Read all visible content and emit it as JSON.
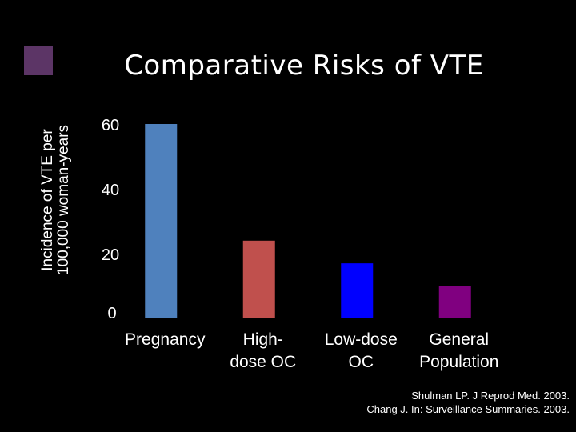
{
  "slide": {
    "title": "Comparative Risks of VTE",
    "source_lines": [
      "Shulman LP. J Reprod Med. 2003.",
      "Chang J. In: Surveillance Summaries. 2003."
    ],
    "colors": {
      "background": "#000000",
      "decoration": "#5c3566"
    }
  },
  "chart_data": {
    "type": "bar",
    "title": "Comparative Risks of VTE",
    "xlabel": "",
    "ylabel": "Incidence of VTE per 100,000 woman-years",
    "ylabel_lines": [
      "Incidence of VTE per",
      "100,000 woman-years"
    ],
    "yticks": [
      0,
      20,
      40,
      60
    ],
    "ylim": [
      0,
      60
    ],
    "grid": false,
    "categories": [
      "Pregnancy",
      "High-dose OC",
      "Low-dose OC",
      "General Population"
    ],
    "category_lines": [
      [
        "Pregnancy"
      ],
      [
        "High-",
        "dose OC"
      ],
      [
        "Low-dose",
        "OC"
      ],
      [
        "General",
        "Population"
      ]
    ],
    "values": [
      60,
      24,
      17,
      10
    ],
    "colors": [
      "#4f81bd",
      "#c0504d",
      "#0000ff",
      "#800080"
    ]
  }
}
